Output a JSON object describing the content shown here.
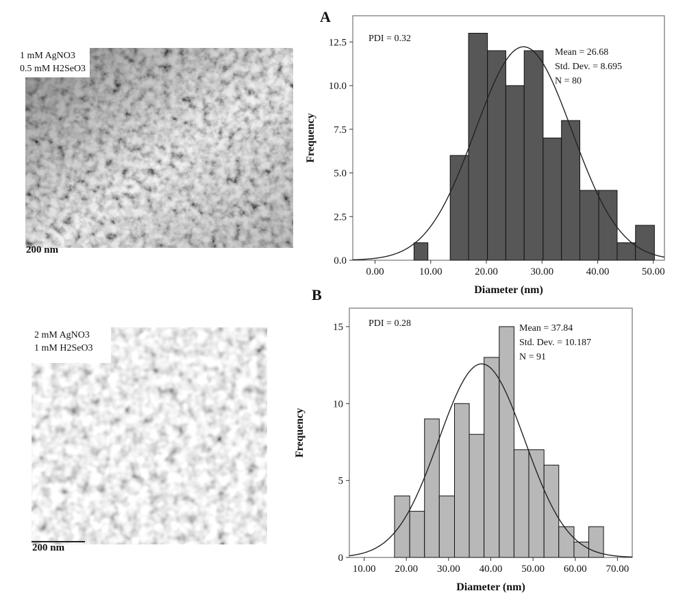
{
  "micrographs": [
    {
      "label_lines": [
        "1 mM AgNO3",
        "0.5 mM H2SeO3"
      ],
      "scale_bar": "200 nm"
    },
    {
      "label_lines": [
        "2 mM AgNO3",
        "1 mM H2SeO3"
      ],
      "scale_bar": "200 nm"
    }
  ],
  "panel_letters": [
    "A",
    "B"
  ],
  "chart_data": [
    {
      "type": "bar",
      "panel": "A",
      "xlabel": "Diameter (nm)",
      "ylabel": "Frequency",
      "xlim": [
        -4,
        52
      ],
      "ylim": [
        0,
        14
      ],
      "xticks": [
        "0.00",
        "10.00",
        "20.00",
        "30.00",
        "40.00",
        "50.00"
      ],
      "yticks": [
        "0.0",
        "2.5",
        "5.0",
        "7.5",
        "10.0",
        "12.5"
      ],
      "bins": [
        {
          "start": 7.0,
          "end": 9.5,
          "count": 1
        },
        {
          "start": 13.5,
          "end": 16.8,
          "count": 6
        },
        {
          "start": 16.8,
          "end": 20.2,
          "count": 13
        },
        {
          "start": 20.2,
          "end": 23.5,
          "count": 12
        },
        {
          "start": 23.5,
          "end": 26.8,
          "count": 10
        },
        {
          "start": 26.8,
          "end": 30.2,
          "count": 12
        },
        {
          "start": 30.2,
          "end": 33.5,
          "count": 7
        },
        {
          "start": 33.5,
          "end": 36.8,
          "count": 8
        },
        {
          "start": 36.8,
          "end": 40.2,
          "count": 4
        },
        {
          "start": 40.2,
          "end": 43.5,
          "count": 4
        },
        {
          "start": 43.5,
          "end": 46.8,
          "count": 1
        },
        {
          "start": 46.8,
          "end": 50.2,
          "count": 2
        }
      ],
      "normal_curve": {
        "mean": 26.68,
        "sd": 8.695,
        "n": 80,
        "bin_width": 3.33
      },
      "pdi_text": "PDI = 0.32",
      "stats_lines": [
        "Mean = 26.68",
        "Std. Dev. = 8.695",
        "N = 80"
      ],
      "bar_color": "#575757",
      "grid": false
    },
    {
      "type": "bar",
      "panel": "B",
      "xlabel": "Diameter (nm)",
      "ylabel": "Frequency",
      "xlim": [
        6.5,
        73.5
      ],
      "ylim": [
        0,
        16.2
      ],
      "xticks": [
        "10.00",
        "20.00",
        "30.00",
        "40.00",
        "50.00",
        "60.00",
        "70.00"
      ],
      "yticks": [
        "0",
        "5",
        "10",
        "15"
      ],
      "bins": [
        {
          "start": 17.2,
          "end": 20.8,
          "count": 4
        },
        {
          "start": 20.8,
          "end": 24.3,
          "count": 3
        },
        {
          "start": 24.3,
          "end": 27.8,
          "count": 9
        },
        {
          "start": 27.8,
          "end": 31.4,
          "count": 4
        },
        {
          "start": 31.4,
          "end": 34.9,
          "count": 10
        },
        {
          "start": 34.9,
          "end": 38.4,
          "count": 8
        },
        {
          "start": 38.4,
          "end": 42.0,
          "count": 13
        },
        {
          "start": 42.0,
          "end": 45.5,
          "count": 15
        },
        {
          "start": 45.5,
          "end": 49.0,
          "count": 7
        },
        {
          "start": 49.0,
          "end": 52.6,
          "count": 7
        },
        {
          "start": 52.6,
          "end": 56.1,
          "count": 6
        },
        {
          "start": 56.1,
          "end": 59.7,
          "count": 2
        },
        {
          "start": 59.7,
          "end": 63.2,
          "count": 1
        },
        {
          "start": 63.2,
          "end": 66.7,
          "count": 2
        }
      ],
      "normal_curve": {
        "mean": 37.84,
        "sd": 10.187,
        "n": 91,
        "bin_width": 3.53
      },
      "pdi_text": "PDI = 0.28",
      "stats_lines": [
        "Mean = 37.84",
        "Std. Dev. = 10.187",
        "N = 91"
      ],
      "bar_color": "#b8b8b8",
      "grid": false
    }
  ]
}
